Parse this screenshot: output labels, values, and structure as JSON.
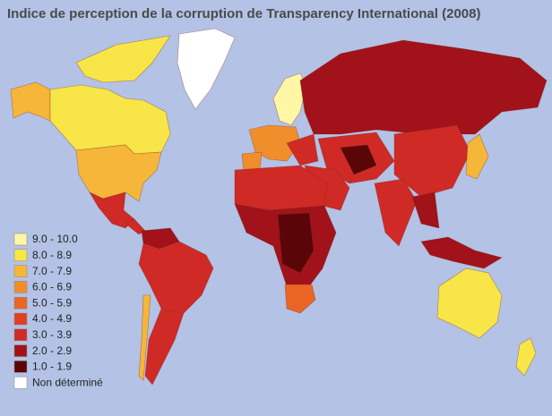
{
  "title": "Indice de perception de la corruption de Transparency International (2008)",
  "legend": [
    {
      "label": "9.0 - 10.0",
      "color": "#fff6a6"
    },
    {
      "label": "8.0 - 8.9",
      "color": "#f8e548"
    },
    {
      "label": "7.0 - 7.9",
      "color": "#f5b63a"
    },
    {
      "label": "6.0 - 6.9",
      "color": "#f18e2c"
    },
    {
      "label": "5.0 - 5.9",
      "color": "#ea6625"
    },
    {
      "label": "4.0 - 4.9",
      "color": "#e13f22"
    },
    {
      "label": "3.0 - 3.9",
      "color": "#cf2a26"
    },
    {
      "label": "2.0 - 2.9",
      "color": "#a1121a"
    },
    {
      "label": "1.0 - 1.9",
      "color": "#5a0508"
    },
    {
      "label": "Non déterminé",
      "color": "#ffffff"
    }
  ]
}
